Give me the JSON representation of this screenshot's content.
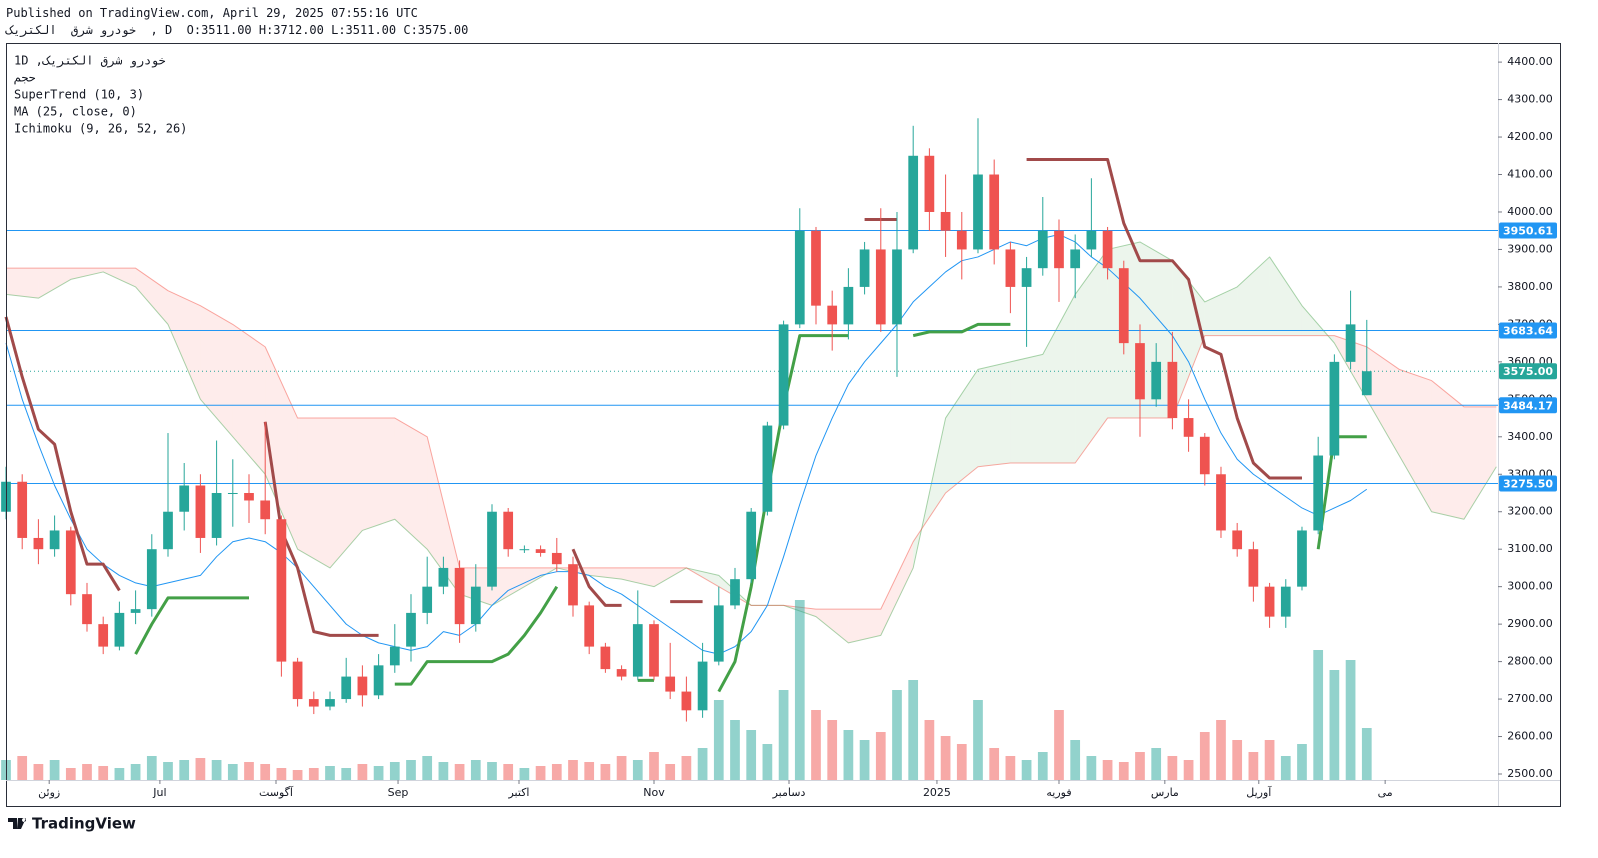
{
  "chart_data": {
    "type": "candlestick",
    "title": "Published on TradingView.com, April 29, 2025 07:55:16 UTC",
    "subtitle": "کیرتکلا  قرش وردوخ  , D  O:3511.00 H:3712.00 L:3511.00 C:3575.00",
    "legend": [
      "1D ,کیرتکلا  قرش وردوخ",
      "مجح",
      "SuperTrend (10, 3)",
      "MA (25, close, 0)",
      "Ichimoku (9, 26, 52, 26)"
    ],
    "brand": "TradingView",
    "xlim": [
      0,
      276.3
    ],
    "ylim": [
      2484,
      4451
    ],
    "volume_lim": [
      0,
      100
    ],
    "xticks": [
      {
        "value": 8,
        "label": "زوئن"
      },
      {
        "value": 28.5,
        "label": "Jul"
      },
      {
        "value": 50,
        "label": "آگوست"
      },
      {
        "value": 72.6,
        "label": "Sep"
      },
      {
        "value": 95,
        "label": "اکتبر"
      },
      {
        "value": 120,
        "label": "Nov"
      },
      {
        "value": 145,
        "label": "دسامبر"
      },
      {
        "value": 172.4,
        "label": "2025"
      },
      {
        "value": 195,
        "label": "فوریه"
      },
      {
        "value": 214.6,
        "label": "مارس"
      },
      {
        "value": 232,
        "label": "آوریل"
      },
      {
        "value": 255.4,
        "label": "می"
      }
    ],
    "yticks": [
      {
        "value": 2500,
        "label": "2500.00"
      },
      {
        "value": 2600,
        "label": "2600.00"
      },
      {
        "value": 2700,
        "label": "2700.00"
      },
      {
        "value": 2800,
        "label": "2800.00"
      },
      {
        "value": 2900,
        "label": "2900.00"
      },
      {
        "value": 3000,
        "label": "3000.00"
      },
      {
        "value": 3100,
        "label": "3100.00"
      },
      {
        "value": 3200,
        "label": "3200.00"
      },
      {
        "value": 3300,
        "label": "3300.00"
      },
      {
        "value": 3400,
        "label": "3400.00"
      },
      {
        "value": 3500,
        "label": "3500.00"
      },
      {
        "value": 3600,
        "label": "3600.00"
      },
      {
        "value": 3700,
        "label": "3700.00"
      },
      {
        "value": 3800,
        "label": "3800.00"
      },
      {
        "value": 3900,
        "label": "3900.00"
      },
      {
        "value": 4000,
        "label": "4000.00"
      },
      {
        "value": 4100,
        "label": "4100.00"
      },
      {
        "value": 4200,
        "label": "4200.00"
      },
      {
        "value": 4300,
        "label": "4300.00"
      },
      {
        "value": 4400,
        "label": "4400.00"
      }
    ],
    "colors": {
      "up": "#26a69a",
      "down": "#ef5350",
      "volume_up": "rgba(38,166,154,0.5)",
      "volume_down": "rgba(239,83,80,0.5)",
      "ma": "#2196f3",
      "supertrend_up": "#43a047",
      "supertrend_down": "#a14a4a",
      "cloud_up": "rgba(67,160,71,0.1)",
      "cloud_down": "rgba(244,67,54,0.1)",
      "span_a": "rgba(67,160,71,0.45)",
      "span_b": "rgba(244,67,54,0.45)",
      "level": "#2196f3",
      "last": "#26a69a"
    },
    "x": [
      0,
      3,
      6,
      9,
      12,
      15,
      18,
      21,
      24,
      27,
      30,
      33,
      36,
      39,
      42,
      45,
      48,
      51,
      54,
      57,
      60,
      63,
      66,
      69,
      72,
      75,
      78,
      81,
      84,
      87,
      90,
      93,
      96,
      99,
      102,
      105,
      108,
      111,
      114,
      117,
      120,
      123,
      126,
      129,
      132,
      135,
      138,
      141,
      144,
      147,
      150,
      153,
      156,
      159,
      162,
      165,
      168,
      171,
      174,
      177,
      180,
      183,
      186,
      189,
      192,
      195,
      198,
      201,
      204,
      207,
      210,
      213,
      216,
      219,
      222,
      225,
      228,
      231,
      234,
      237,
      240,
      243,
      246,
      249,
      252
    ],
    "candles": [
      [
        3200,
        3320,
        3180,
        3280
      ],
      [
        3280,
        3300,
        3100,
        3130
      ],
      [
        3130,
        3180,
        3060,
        3100
      ],
      [
        3100,
        3190,
        3080,
        3150
      ],
      [
        3150,
        3160,
        2950,
        2980
      ],
      [
        2980,
        3010,
        2880,
        2900
      ],
      [
        2900,
        2920,
        2820,
        2840
      ],
      [
        2840,
        2960,
        2830,
        2930
      ],
      [
        2930,
        2990,
        2900,
        2940
      ],
      [
        2940,
        3140,
        2920,
        3100
      ],
      [
        3100,
        3410,
        3080,
        3200
      ],
      [
        3200,
        3330,
        3150,
        3270
      ],
      [
        3270,
        3300,
        3090,
        3130
      ],
      [
        3130,
        3390,
        3110,
        3250
      ],
      [
        3250,
        3340,
        3160,
        3250
      ],
      [
        3250,
        3300,
        3170,
        3230
      ],
      [
        3230,
        3440,
        3140,
        3180
      ],
      [
        3180,
        3190,
        2760,
        2800
      ],
      [
        2800,
        2810,
        2680,
        2700
      ],
      [
        2700,
        2720,
        2660,
        2680
      ],
      [
        2680,
        2720,
        2670,
        2700
      ],
      [
        2700,
        2810,
        2690,
        2760
      ],
      [
        2760,
        2790,
        2680,
        2710
      ],
      [
        2710,
        2820,
        2700,
        2790
      ],
      [
        2790,
        2900,
        2770,
        2840
      ],
      [
        2840,
        2980,
        2800,
        2930
      ],
      [
        2930,
        3080,
        2900,
        3000
      ],
      [
        3000,
        3080,
        2980,
        3050
      ],
      [
        3050,
        3070,
        2850,
        2900
      ],
      [
        2900,
        3060,
        2880,
        3000
      ],
      [
        3000,
        3220,
        2990,
        3200
      ],
      [
        3200,
        3210,
        3080,
        3100
      ],
      [
        3100,
        3110,
        3090,
        3100
      ],
      [
        3100,
        3110,
        3080,
        3090
      ],
      [
        3090,
        3130,
        3040,
        3060
      ],
      [
        3060,
        3080,
        2920,
        2950
      ],
      [
        2950,
        2960,
        2820,
        2840
      ],
      [
        2840,
        2850,
        2770,
        2780
      ],
      [
        2780,
        2790,
        2750,
        2760
      ],
      [
        2760,
        2990,
        2750,
        2900
      ],
      [
        2900,
        2910,
        2750,
        2760
      ],
      [
        2760,
        2850,
        2700,
        2720
      ],
      [
        2720,
        2760,
        2640,
        2670
      ],
      [
        2670,
        2850,
        2650,
        2800
      ],
      [
        2800,
        3000,
        2790,
        2950
      ],
      [
        2950,
        3050,
        2940,
        3020
      ],
      [
        3020,
        3210,
        3010,
        3200
      ],
      [
        3200,
        3440,
        3190,
        3430
      ],
      [
        3430,
        3710,
        3420,
        3700
      ],
      [
        3700,
        4010,
        3690,
        3950
      ],
      [
        3950,
        3960,
        3700,
        3750
      ],
      [
        3750,
        3790,
        3630,
        3700
      ],
      [
        3700,
        3850,
        3660,
        3800
      ],
      [
        3800,
        3920,
        3780,
        3900
      ],
      [
        3900,
        4010,
        3680,
        3700
      ],
      [
        3700,
        4000,
        3560,
        3900
      ],
      [
        3900,
        4230,
        3890,
        4150
      ],
      [
        4150,
        4170,
        3950,
        4000
      ],
      [
        4000,
        4100,
        3880,
        3950
      ],
      [
        3950,
        4000,
        3820,
        3900
      ],
      [
        3900,
        4250,
        3890,
        4100
      ],
      [
        4100,
        4140,
        3860,
        3900
      ],
      [
        3900,
        3920,
        3730,
        3800
      ],
      [
        3800,
        3880,
        3640,
        3850
      ],
      [
        3850,
        4040,
        3830,
        3950
      ],
      [
        3950,
        3980,
        3760,
        3850
      ],
      [
        3850,
        3940,
        3770,
        3900
      ],
      [
        3900,
        4090,
        3880,
        3950
      ],
      [
        3950,
        3960,
        3820,
        3850
      ],
      [
        3850,
        3870,
        3620,
        3650
      ],
      [
        3650,
        3700,
        3400,
        3500
      ],
      [
        3500,
        3650,
        3480,
        3600
      ],
      [
        3600,
        3680,
        3420,
        3450
      ],
      [
        3450,
        3500,
        3360,
        3400
      ],
      [
        3400,
        3410,
        3270,
        3300
      ],
      [
        3300,
        3320,
        3130,
        3150
      ],
      [
        3150,
        3170,
        3080,
        3100
      ],
      [
        3100,
        3120,
        2960,
        3000
      ],
      [
        3000,
        3010,
        2890,
        2920
      ],
      [
        2920,
        3020,
        2890,
        3000
      ],
      [
        3000,
        3160,
        2990,
        3150
      ],
      [
        3150,
        3400,
        3140,
        3350
      ],
      [
        3350,
        3620,
        3340,
        3600
      ],
      [
        3600,
        3790,
        3580,
        3700
      ],
      [
        3511,
        3712,
        3511,
        3575
      ]
    ],
    "volume": [
      10,
      12,
      8,
      10,
      6,
      8,
      7,
      6,
      8,
      12,
      9,
      10,
      11,
      10,
      8,
      9,
      8,
      6,
      5,
      6,
      7,
      6,
      8,
      7,
      9,
      10,
      12,
      9,
      8,
      10,
      9,
      8,
      6,
      7,
      8,
      10,
      9,
      8,
      12,
      10,
      14,
      8,
      12,
      16,
      40,
      30,
      25,
      18,
      45,
      90,
      35,
      30,
      25,
      20,
      24,
      45,
      50,
      30,
      22,
      18,
      40,
      16,
      12,
      10,
      14,
      35,
      20,
      12,
      10,
      9,
      14,
      16,
      12,
      10,
      24,
      30,
      20,
      14,
      20,
      12,
      18,
      65,
      55,
      60,
      26
    ],
    "ma": [
      3650,
      3500,
      3380,
      3270,
      3180,
      3100,
      3060,
      3030,
      3010,
      3000,
      3010,
      3020,
      3030,
      3080,
      3120,
      3130,
      3120,
      3090,
      3050,
      3000,
      2950,
      2900,
      2870,
      2850,
      2840,
      2830,
      2840,
      2880,
      2870,
      2900,
      2950,
      2990,
      3010,
      3030,
      3040,
      3040,
      3030,
      3000,
      2980,
      2950,
      2920,
      2890,
      2860,
      2830,
      2820,
      2840,
      2880,
      2950,
      3080,
      3220,
      3350,
      3450,
      3540,
      3600,
      3650,
      3700,
      3760,
      3800,
      3840,
      3870,
      3880,
      3900,
      3920,
      3910,
      3930,
      3940,
      3920,
      3880,
      3850,
      3810,
      3770,
      3720,
      3670,
      3600,
      3500,
      3410,
      3340,
      3300,
      3270,
      3240,
      3210,
      3190,
      3210,
      3230,
      3260
    ],
    "supertrend_up": [
      null,
      null,
      null,
      null,
      null,
      null,
      null,
      null,
      2820,
      2900,
      2970,
      2970,
      2970,
      2970,
      2970,
      2970,
      null,
      null,
      null,
      null,
      null,
      null,
      null,
      null,
      2740,
      2740,
      2800,
      2800,
      2800,
      2800,
      2800,
      2820,
      2870,
      2930,
      3000,
      null,
      null,
      null,
      null,
      2750,
      2750,
      null,
      null,
      null,
      2720,
      2800,
      3000,
      3250,
      3480,
      3670,
      3670,
      3670,
      3670,
      null,
      null,
      null,
      3670,
      3680,
      3680,
      3680,
      3700,
      3700,
      3700,
      null,
      null,
      null,
      null,
      null,
      null,
      null,
      null,
      null,
      null,
      null,
      null,
      null,
      null,
      null,
      null,
      null,
      null,
      3100,
      3400,
      3400,
      3400
    ],
    "supertrend_down": [
      3720,
      3560,
      3420,
      3380,
      3200,
      3060,
      3060,
      2990,
      null,
      null,
      null,
      null,
      null,
      null,
      null,
      null,
      3440,
      3150,
      3050,
      2880,
      2870,
      2870,
      2870,
      2870,
      null,
      null,
      null,
      null,
      null,
      null,
      null,
      null,
      null,
      null,
      null,
      3100,
      3000,
      2950,
      2950,
      null,
      null,
      2960,
      2960,
      2960,
      null,
      null,
      null,
      null,
      null,
      null,
      null,
      null,
      null,
      3980,
      3980,
      3980,
      null,
      null,
      null,
      null,
      null,
      null,
      null,
      4140,
      4140,
      4140,
      4140,
      4140,
      4140,
      3970,
      3870,
      3870,
      3870,
      3820,
      3640,
      3620,
      3450,
      3330,
      3290,
      3290,
      3290,
      null,
      null,
      null,
      null
    ],
    "cloud_x": [
      0,
      6,
      12,
      18,
      24,
      30,
      36,
      42,
      48,
      54,
      60,
      66,
      72,
      78,
      84,
      90,
      96,
      102,
      108,
      114,
      120,
      126,
      132,
      138,
      144,
      150,
      156,
      162,
      168,
      174,
      180,
      186,
      192,
      198,
      204,
      210,
      216,
      222,
      228,
      234,
      240,
      246,
      252,
      258,
      264,
      270,
      276
    ],
    "span_a": [
      3780,
      3770,
      3820,
      3840,
      3800,
      3700,
      3500,
      3400,
      3300,
      3100,
      3050,
      3150,
      3180,
      3100,
      2980,
      2950,
      3000,
      3050,
      3030,
      3020,
      3000,
      3050,
      3030,
      2950,
      2950,
      2920,
      2850,
      2870,
      3050,
      3450,
      3580,
      3600,
      3620,
      3780,
      3900,
      3920,
      3870,
      3760,
      3800,
      3880,
      3750,
      3650,
      3500,
      3350,
      3200,
      3180,
      3320
    ],
    "span_b": [
      3850,
      3850,
      3850,
      3850,
      3850,
      3790,
      3750,
      3700,
      3640,
      3450,
      3450,
      3450,
      3450,
      3400,
      3050,
      3050,
      3050,
      3050,
      3050,
      3050,
      3050,
      3050,
      3000,
      2950,
      2950,
      2940,
      2940,
      2940,
      3120,
      3250,
      3320,
      3330,
      3330,
      3330,
      3450,
      3450,
      3450,
      3670,
      3670,
      3670,
      3670,
      3670,
      3640,
      3580,
      3550,
      3480,
      3480
    ],
    "levels": [
      {
        "value": 3950.61,
        "label": "3950.61"
      },
      {
        "value": 3683.64,
        "label": "3683.64"
      },
      {
        "value": 3484.17,
        "label": "3484.17"
      },
      {
        "value": 3275.5,
        "label": "3275.50"
      }
    ],
    "last_price": {
      "value": 3575.0,
      "label": "3575.00"
    }
  }
}
